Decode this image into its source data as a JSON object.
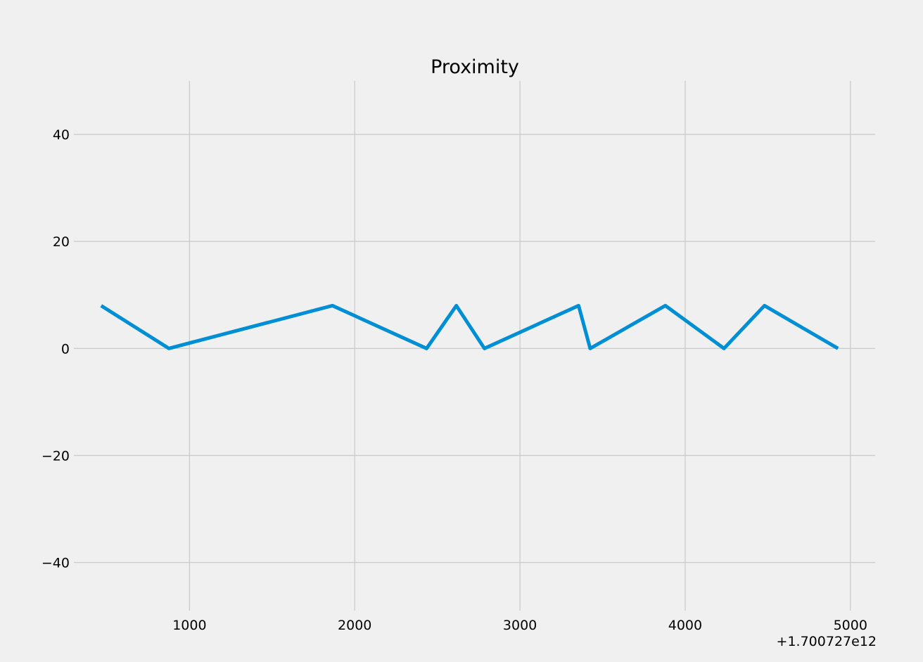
{
  "chart_data": {
    "type": "line",
    "title": "Proximity",
    "xlabel": "",
    "ylabel": "",
    "x_offset_label": "+1.700727e12",
    "xlim": [
      300,
      5150
    ],
    "ylim": [
      -49,
      50
    ],
    "xticks": [
      1000,
      2000,
      3000,
      4000,
      5000
    ],
    "yticks": [
      -40,
      -20,
      0,
      20,
      40
    ],
    "xtick_labels": [
      "1000",
      "2000",
      "3000",
      "4000",
      "5000"
    ],
    "ytick_labels": [
      "−40",
      "−20",
      "0",
      "20",
      "40"
    ],
    "grid": true,
    "series": [
      {
        "color": "#008fd5",
        "x": [
          465,
          875,
          1865,
          2435,
          2615,
          2785,
          3355,
          3425,
          3880,
          4235,
          4480,
          4925
        ],
        "y": [
          8,
          0,
          8,
          0,
          8,
          0,
          8,
          0,
          8,
          0,
          8,
          0
        ]
      }
    ]
  },
  "colors": {
    "background": "#f0f0f0",
    "grid": "#cbcbcb",
    "line": "#008fd5"
  }
}
